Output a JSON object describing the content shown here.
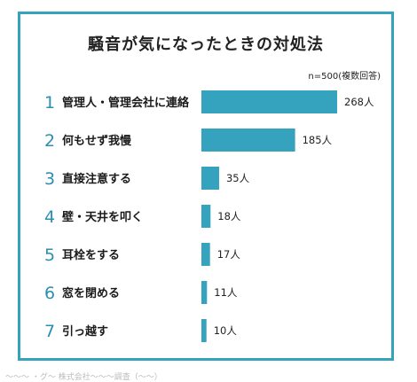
{
  "chart_data": {
    "type": "bar",
    "orientation": "horizontal",
    "title": "騒音が気になったときの対処法",
    "note": "n=500(複数回答)",
    "unit": "人",
    "categories": [
      "管理人・管理会社に連絡",
      "何もせず我慢",
      "直接注意する",
      "壁・天井を叩く",
      "耳栓をする",
      "窓を閉める",
      "引っ越す"
    ],
    "ranks": [
      "1",
      "2",
      "3",
      "4",
      "5",
      "6",
      "7"
    ],
    "values": [
      268,
      185,
      35,
      18,
      17,
      11,
      10
    ],
    "xlim": [
      0,
      268
    ],
    "grid": false,
    "legend": "none",
    "colors": {
      "bar": "#35a3bd",
      "rank": "#2a8fb0",
      "border": "#35a3bd"
    }
  },
  "footer": "～～～ ・グ～ 株式会社～～～調査（～～）"
}
